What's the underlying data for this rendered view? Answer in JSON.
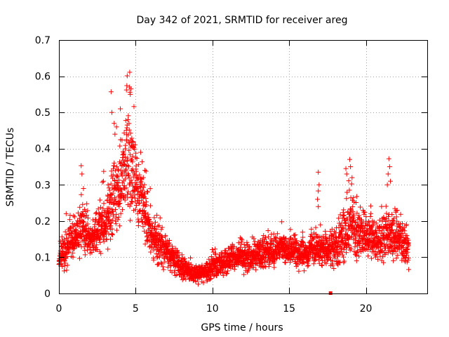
{
  "chart_data": {
    "type": "scatter",
    "title": "Day 342 of 2021, SRMTID for receiver areg",
    "xlabel": "GPS time / hours",
    "ylabel": "SRMTID / TECUs",
    "xlim": [
      0,
      24
    ],
    "ylim": [
      0,
      0.7
    ],
    "x_ticks": [
      0,
      5,
      10,
      15,
      20
    ],
    "x_tick_labels": [
      "0",
      "5",
      "10",
      "15",
      "20"
    ],
    "y_ticks": [
      0,
      0.1,
      0.2,
      0.3,
      0.4,
      0.5,
      0.6,
      0.7
    ],
    "y_tick_labels": [
      "0",
      "0.1",
      "0.2",
      "0.3",
      "0.4",
      "0.5",
      "0.6",
      "0.7"
    ],
    "grid": true,
    "marker": "+",
    "series": [
      {
        "name": "SRMTID",
        "color": "#ff0000",
        "profile": {
          "x": [
            0,
            0.5,
            1.0,
            1.5,
            2.0,
            2.5,
            3.0,
            3.5,
            4.0,
            4.5,
            5.0,
            5.5,
            6.0,
            6.5,
            7.0,
            7.5,
            8.0,
            8.5,
            9.0,
            9.5,
            10.0,
            10.5,
            11.0,
            11.5,
            12.0,
            12.5,
            13.0,
            13.5,
            14.0,
            14.5,
            15.0,
            15.5,
            16.0,
            16.5,
            17.0,
            17.5,
            18.0,
            18.5,
            19.0,
            19.5,
            20.0,
            20.5,
            21.0,
            21.5,
            22.0,
            22.5,
            22.8
          ],
          "y": [
            0.09,
            0.13,
            0.16,
            0.18,
            0.15,
            0.17,
            0.2,
            0.25,
            0.3,
            0.36,
            0.3,
            0.24,
            0.16,
            0.13,
            0.12,
            0.09,
            0.07,
            0.06,
            0.05,
            0.06,
            0.07,
            0.08,
            0.09,
            0.1,
            0.1,
            0.1,
            0.11,
            0.11,
            0.12,
            0.12,
            0.12,
            0.11,
            0.11,
            0.12,
            0.13,
            0.12,
            0.13,
            0.16,
            0.19,
            0.17,
            0.16,
            0.15,
            0.14,
            0.17,
            0.15,
            0.14,
            0.12
          ],
          "spread": [
            0.03,
            0.05,
            0.05,
            0.06,
            0.04,
            0.05,
            0.06,
            0.08,
            0.1,
            0.12,
            0.09,
            0.07,
            0.05,
            0.05,
            0.04,
            0.03,
            0.025,
            0.02,
            0.02,
            0.02,
            0.03,
            0.03,
            0.03,
            0.03,
            0.035,
            0.035,
            0.035,
            0.035,
            0.035,
            0.035,
            0.035,
            0.035,
            0.035,
            0.04,
            0.04,
            0.04,
            0.05,
            0.06,
            0.08,
            0.06,
            0.05,
            0.05,
            0.05,
            0.07,
            0.06,
            0.05,
            0.04
          ]
        },
        "outliers": [
          [
            4.45,
            0.601
          ],
          [
            4.6,
            0.57
          ],
          [
            4.7,
            0.565
          ],
          [
            4.4,
            0.562
          ],
          [
            3.4,
            0.557
          ],
          [
            4.65,
            0.55
          ],
          [
            4.0,
            0.51
          ],
          [
            3.45,
            0.5
          ],
          [
            3.6,
            0.47
          ],
          [
            4.5,
            0.48
          ],
          [
            3.75,
            0.46
          ],
          [
            3.65,
            0.44
          ],
          [
            4.8,
            0.42
          ],
          [
            1.45,
            0.353
          ],
          [
            1.5,
            0.33
          ],
          [
            16.9,
            0.335
          ],
          [
            16.95,
            0.3
          ],
          [
            16.9,
            0.283
          ],
          [
            16.85,
            0.26
          ],
          [
            16.9,
            0.24
          ],
          [
            18.95,
            0.37
          ],
          [
            19.0,
            0.35
          ],
          [
            18.7,
            0.345
          ],
          [
            18.75,
            0.33
          ],
          [
            19.1,
            0.32
          ],
          [
            21.5,
            0.372
          ],
          [
            21.55,
            0.35
          ],
          [
            21.45,
            0.33
          ],
          [
            21.6,
            0.31
          ],
          [
            21.4,
            0.3
          ],
          [
            5.6,
            0.34
          ],
          [
            5.5,
            0.32
          ],
          [
            1.6,
            0.29
          ],
          [
            2.9,
            0.31
          ],
          [
            3.2,
            0.3
          ]
        ],
        "special_point": [
          17.7,
          0.0
        ]
      }
    ]
  }
}
